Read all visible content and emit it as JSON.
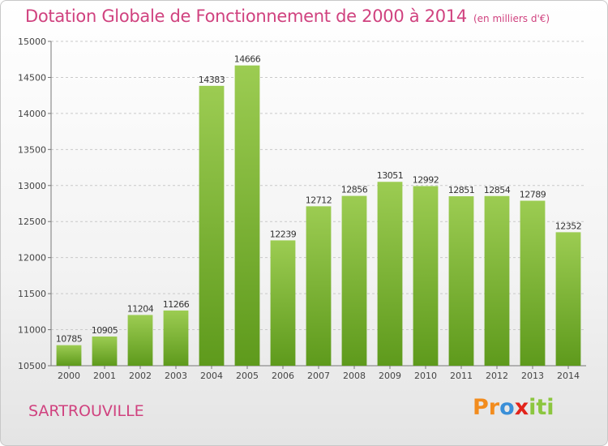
{
  "chart_data": {
    "type": "bar",
    "title": "Dotation Globale de Fonctionnement de 2000 à 2014",
    "unit_note": "(en milliers d'€)",
    "categories": [
      "2000",
      "2001",
      "2002",
      "2003",
      "2004",
      "2005",
      "2006",
      "2007",
      "2008",
      "2009",
      "2010",
      "2011",
      "2012",
      "2013",
      "2014"
    ],
    "values": [
      10785,
      10905,
      11204,
      11266,
      14383,
      14666,
      12239,
      12712,
      12856,
      13051,
      12992,
      12851,
      12854,
      12789,
      12352
    ],
    "ylim": [
      10500,
      15000
    ],
    "yticks": [
      10500,
      11000,
      11500,
      12000,
      12500,
      13000,
      13500,
      14000,
      14500,
      15000
    ],
    "grid": true,
    "bar_color_top": "#9ccc52",
    "bar_color_bottom": "#5e9a1c"
  },
  "footer": {
    "city": "SARTROUVILLE",
    "logo_letters": [
      "P",
      "r",
      "o",
      "x",
      "i",
      "t",
      "i"
    ],
    "logo_colors": [
      "#f28c1e",
      "#f28c1e",
      "#3a8fd8",
      "#e2231a",
      "#8cc63f",
      "#8cc63f",
      "#8cc63f"
    ]
  }
}
